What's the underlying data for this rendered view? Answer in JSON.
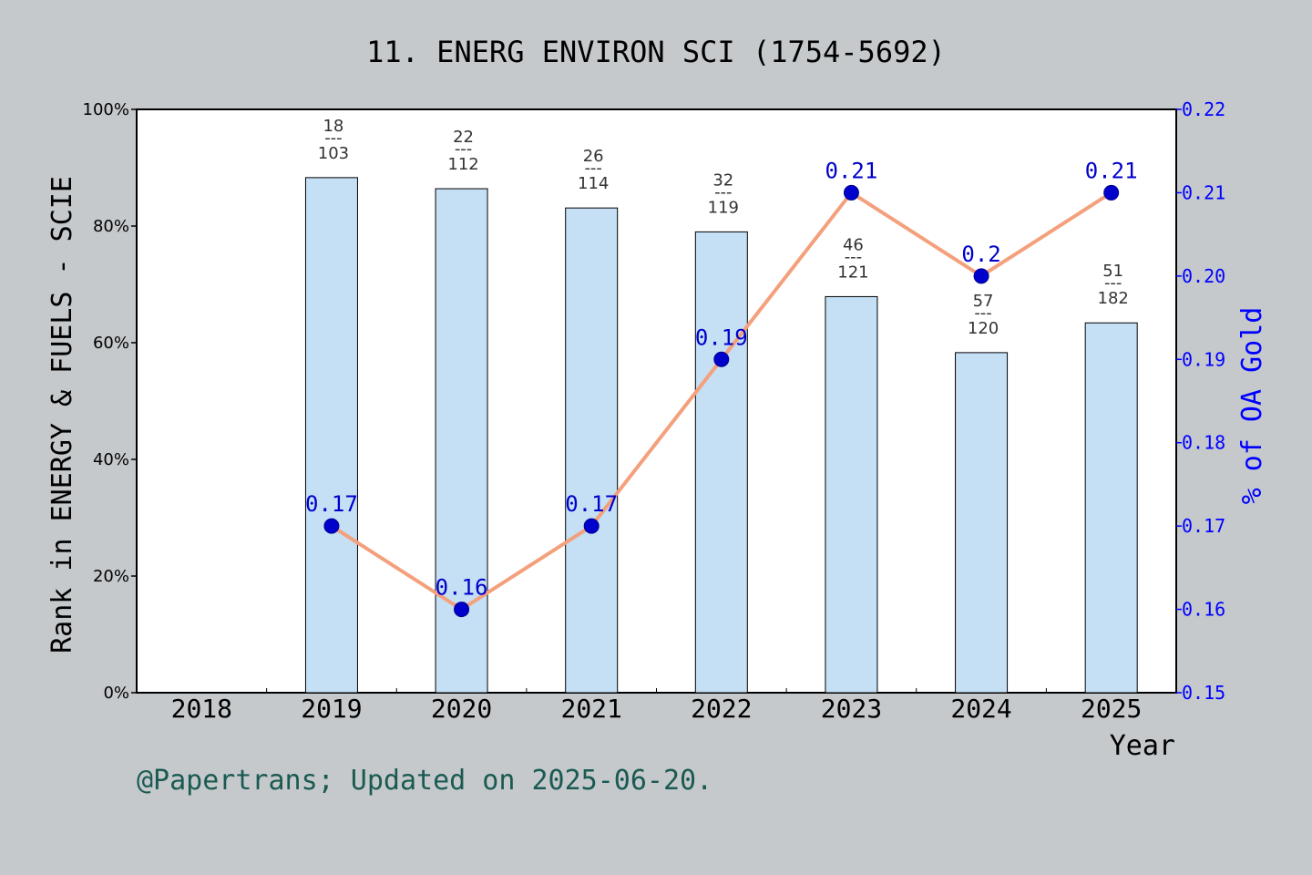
{
  "chart_data": {
    "type": "bar",
    "title": "11. ENERG ENVIRON SCI (1754-5692)",
    "xlabel": "Year",
    "ylabel_left": "Rank in ENERGY & FUELS - SCIE",
    "ylabel_right": "% of OA Gold",
    "categories": [
      "2018",
      "2019",
      "2020",
      "2021",
      "2022",
      "2023",
      "2024",
      "2025"
    ],
    "ylim_left": [
      0,
      100
    ],
    "yticks_left": [
      "0%",
      "20%",
      "40%",
      "60%",
      "80%",
      "100%"
    ],
    "ylim_right": [
      0.15,
      0.22
    ],
    "yticks_right": [
      "0.15",
      "0.16",
      "0.17",
      "0.18",
      "0.19",
      "0.20",
      "0.21",
      "0.22"
    ],
    "bars": {
      "values": [
        null,
        88.3,
        86.4,
        83.1,
        79.0,
        67.9,
        58.3,
        63.4
      ],
      "rank_labels": [
        null,
        {
          "rank": "18",
          "sep": "---",
          "total": "103"
        },
        {
          "rank": "22",
          "sep": "---",
          "total": "112"
        },
        {
          "rank": "26",
          "sep": "---",
          "total": "114"
        },
        {
          "rank": "32",
          "sep": "---",
          "total": "119"
        },
        {
          "rank": "46",
          "sep": "---",
          "total": "121"
        },
        {
          "rank": "57",
          "sep": "---",
          "total": "120"
        },
        {
          "rank": "51",
          "sep": "---",
          "total": "182"
        }
      ]
    },
    "line": {
      "values": [
        null,
        0.17,
        0.16,
        0.17,
        0.19,
        0.21,
        0.2,
        0.21
      ],
      "labels": [
        null,
        "0.17",
        "0.16",
        "0.17",
        "0.19",
        "0.21",
        "0.2",
        "0.21"
      ]
    },
    "grid": false,
    "colors": {
      "bar_fill": "#c5dff5",
      "bar_stroke": "#000000",
      "line": "#f4a07c",
      "marker": "#0000cc",
      "right_axis": "#0000ff",
      "footer": "#1a5a52",
      "background": "#c5c9cc"
    }
  },
  "footer": "@Papertrans; Updated on 2025-06-20."
}
